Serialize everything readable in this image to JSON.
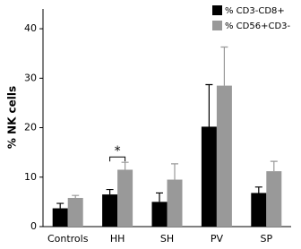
{
  "chart_data": {
    "type": "bar",
    "y_label": "% NK cells",
    "categories": [
      "Controls",
      "HH",
      "SH",
      "PV",
      "SP"
    ],
    "series": [
      {
        "name": "% CD3-CD8+",
        "color": "#000000",
        "values": [
          3.7,
          6.5,
          5.0,
          20.2,
          6.8
        ],
        "errors": [
          1.0,
          1.0,
          1.8,
          8.5,
          1.2
        ]
      },
      {
        "name": "% CD56+CD3-",
        "color": "#999999",
        "values": [
          5.8,
          11.5,
          9.5,
          28.5,
          11.2
        ],
        "errors": [
          0.5,
          1.5,
          3.2,
          7.8,
          2.0
        ]
      }
    ],
    "annotation": "*",
    "ylim": [
      0,
      44
    ],
    "yticks": [
      0,
      10,
      20,
      30,
      40
    ],
    "legend": "top-right"
  }
}
